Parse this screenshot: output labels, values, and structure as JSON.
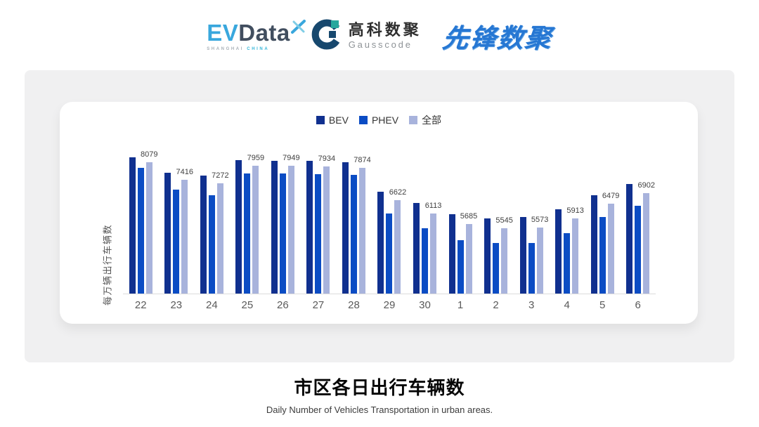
{
  "header": {
    "evdata": {
      "ev": "EV",
      "data": "Data",
      "sub_left": "SHANGHAI",
      "sub_right": "CHINA"
    },
    "gausscode": {
      "cn": "高科数聚",
      "en": "Gausscode"
    },
    "xianfeng": {
      "text": "先锋数聚"
    }
  },
  "colors": {
    "bev": "#10308f",
    "phev": "#0b4cc4",
    "all": "#a8b3dc",
    "panel_bg": "#f0f0f1",
    "card_bg": "#ffffff",
    "evdata_blue": "#39a7dd",
    "gauss_navy": "#17486e",
    "gauss_teal": "#27a79e",
    "xianfeng_blue": "#2677d3"
  },
  "chart_data": {
    "type": "bar",
    "title": "市区各日出行车辆数",
    "subtitle": "Daily Number of Vehicles Transportation in urban areas.",
    "ylabel": "每万辆出行车辆数",
    "xlabel": "",
    "ylim": [
      3000,
      8500
    ],
    "grid": false,
    "legend_position": "top",
    "categories": [
      "22",
      "23",
      "24",
      "25",
      "26",
      "27",
      "28",
      "29",
      "30",
      "1",
      "2",
      "3",
      "4",
      "5",
      "6"
    ],
    "series": [
      {
        "name": "BEV",
        "color": "#10308f",
        "values": [
          8270,
          7690,
          7570,
          8160,
          8150,
          8140,
          8090,
          6940,
          6500,
          6080,
          5910,
          5960,
          6280,
          6820,
          7240
        ]
      },
      {
        "name": "PHEV",
        "color": "#0b4cc4",
        "values": [
          7880,
          7030,
          6800,
          7660,
          7650,
          7620,
          7590,
          6100,
          5530,
          5060,
          4950,
          4960,
          5350,
          5960,
          6390
        ]
      },
      {
        "name": "全部",
        "color": "#a8b3dc",
        "values": [
          8079,
          7416,
          7272,
          7959,
          7949,
          7934,
          7874,
          6622,
          6113,
          5685,
          5545,
          5573,
          5913,
          6479,
          6902
        ]
      }
    ],
    "label_series_index": 2,
    "data_labels": [
      8079,
      7416,
      7272,
      7959,
      7949,
      7934,
      7874,
      6622,
      6113,
      5685,
      5545,
      5573,
      5913,
      6479,
      6902
    ]
  },
  "footer": {
    "title": "市区各日出行车辆数",
    "subtitle": "Daily Number of Vehicles Transportation in urban areas."
  }
}
